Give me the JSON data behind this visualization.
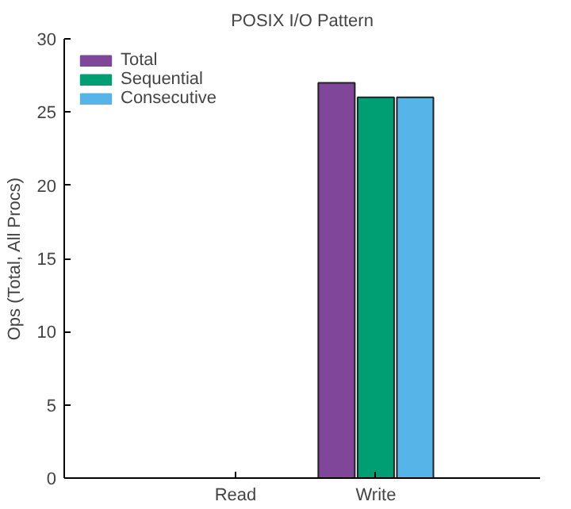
{
  "chart_data": {
    "type": "bar",
    "title": "POSIX I/O Pattern",
    "ylabel": "Ops (Total, All Procs)",
    "categories": [
      "Read",
      "Write"
    ],
    "series": [
      {
        "name": "Total",
        "color": "#7f4699",
        "values": [
          0,
          27
        ]
      },
      {
        "name": "Sequential",
        "color": "#009e73",
        "values": [
          0,
          26
        ]
      },
      {
        "name": "Consecutive",
        "color": "#56b4e9",
        "values": [
          0,
          26
        ]
      }
    ],
    "ylim": [
      0,
      30
    ],
    "yticks": [
      0,
      5,
      10,
      15,
      20,
      25,
      30
    ],
    "grid": false,
    "legend": "top left"
  }
}
